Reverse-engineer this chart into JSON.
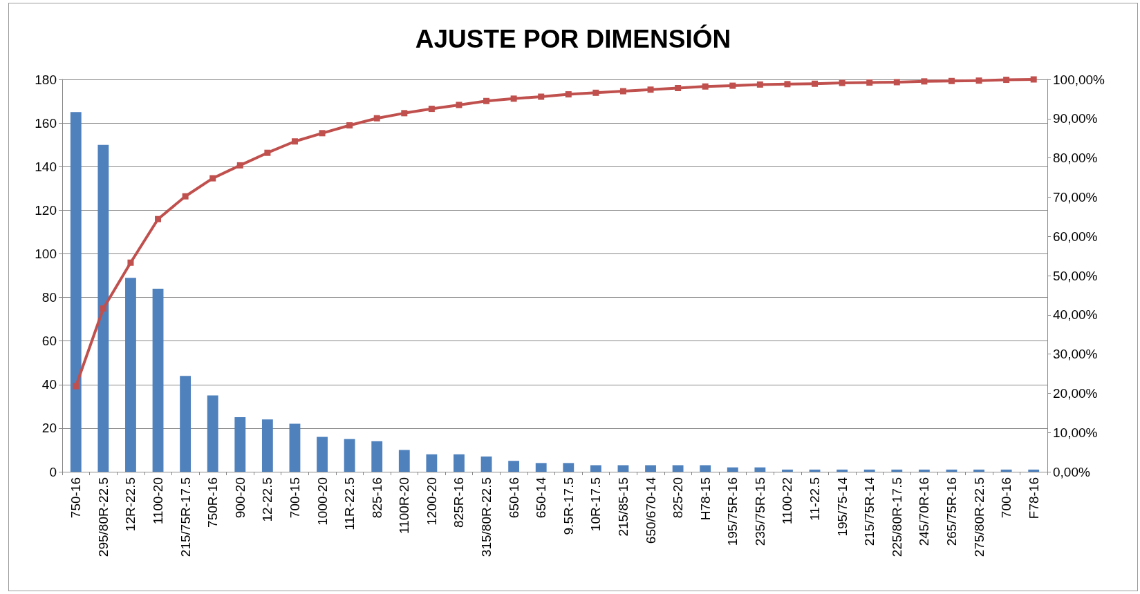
{
  "chart_data": {
    "type": "bar",
    "title": "AJUSTE POR DIMENSIÓN",
    "categories": [
      "750-16",
      "295/80R-22.5",
      "12R-22.5",
      "1100-20",
      "215/75R-17.5",
      "750R-16",
      "900-20",
      "12-22.5",
      "700-15",
      "1000-20",
      "11R-22.5",
      "825-16",
      "1100R-20",
      "1200-20",
      "825R-16",
      "315/80R-22.5",
      "650-16",
      "650-14",
      "9.5R-17.5",
      "10R-17.5",
      "215/85-15",
      "650/670-14",
      "825-20",
      "H78-15",
      "195/75R-16",
      "235/75R-15",
      "1100-22",
      "11-22.5",
      "195/75-14",
      "215/75R-14",
      "225/80R-17.5",
      "245/70R-16",
      "265/75R-16",
      "275/80R-22.5",
      "700-16",
      "F78-16"
    ],
    "series": [
      {
        "color": "#4f81bd",
        "values": [
          165,
          150,
          89,
          84,
          44,
          35,
          25,
          24,
          22,
          16,
          15,
          14,
          10,
          8,
          8,
          7,
          5,
          4,
          4,
          3,
          3,
          3,
          3,
          3,
          2,
          2,
          1,
          1,
          1,
          1,
          1,
          1,
          1,
          1,
          1,
          1
        ]
      },
      {
        "type": "line",
        "axis": "y2",
        "color": "#c0504d",
        "values": [
          21.8,
          41.6,
          53.3,
          64.4,
          70.2,
          74.8,
          78.1,
          81.3,
          84.2,
          86.3,
          88.3,
          90.1,
          91.4,
          92.5,
          93.5,
          94.5,
          95.1,
          95.6,
          96.2,
          96.6,
          97.0,
          97.4,
          97.8,
          98.2,
          98.4,
          98.7,
          98.8,
          98.9,
          99.1,
          99.2,
          99.3,
          99.5,
          99.6,
          99.7,
          99.9,
          100
        ]
      }
    ],
    "ylim": [
      0,
      180
    ],
    "yticks": [
      0,
      20,
      40,
      60,
      80,
      100,
      120,
      140,
      160,
      180
    ],
    "y2lim": [
      0,
      100
    ],
    "y2ticks": [
      {
        "value": 0,
        "label": "0,00%"
      },
      {
        "value": 10,
        "label": "10,00%"
      },
      {
        "value": 20,
        "label": "20,00%"
      },
      {
        "value": 30,
        "label": "30,00%"
      },
      {
        "value": 40,
        "label": "40,00%"
      },
      {
        "value": 50,
        "label": "50,00%"
      },
      {
        "value": 60,
        "label": "60,00%"
      },
      {
        "value": 70,
        "label": "70,00%"
      },
      {
        "value": 80,
        "label": "80,00%"
      },
      {
        "value": 90,
        "label": "90,00%"
      },
      {
        "value": 100,
        "label": "100,00%"
      }
    ],
    "grid": "y",
    "marker": "square",
    "line_style": "solid"
  }
}
